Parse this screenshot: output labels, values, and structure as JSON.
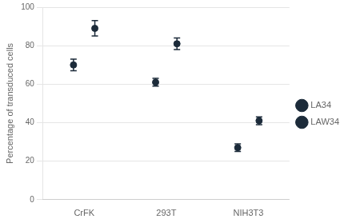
{
  "chart_data": {
    "type": "scatter",
    "categories": [
      "CrFK",
      "293T",
      "NIH3T3"
    ],
    "series": [
      {
        "name": "LA34",
        "color": "#1c2b3a",
        "marker": "o",
        "values": [
          70,
          61,
          27
        ],
        "yerr": [
          3,
          2,
          2
        ]
      },
      {
        "name": "LAW34",
        "color": "#1c2b3a",
        "marker": "o",
        "values": [
          89,
          81,
          41
        ],
        "yerr": [
          4,
          3,
          2
        ]
      }
    ],
    "ylabel": "Percentage of transduced cells",
    "ylim": [
      0,
      100
    ],
    "yticks": [
      0,
      20,
      40,
      60,
      80,
      100
    ],
    "grid": true,
    "legend": "right"
  }
}
